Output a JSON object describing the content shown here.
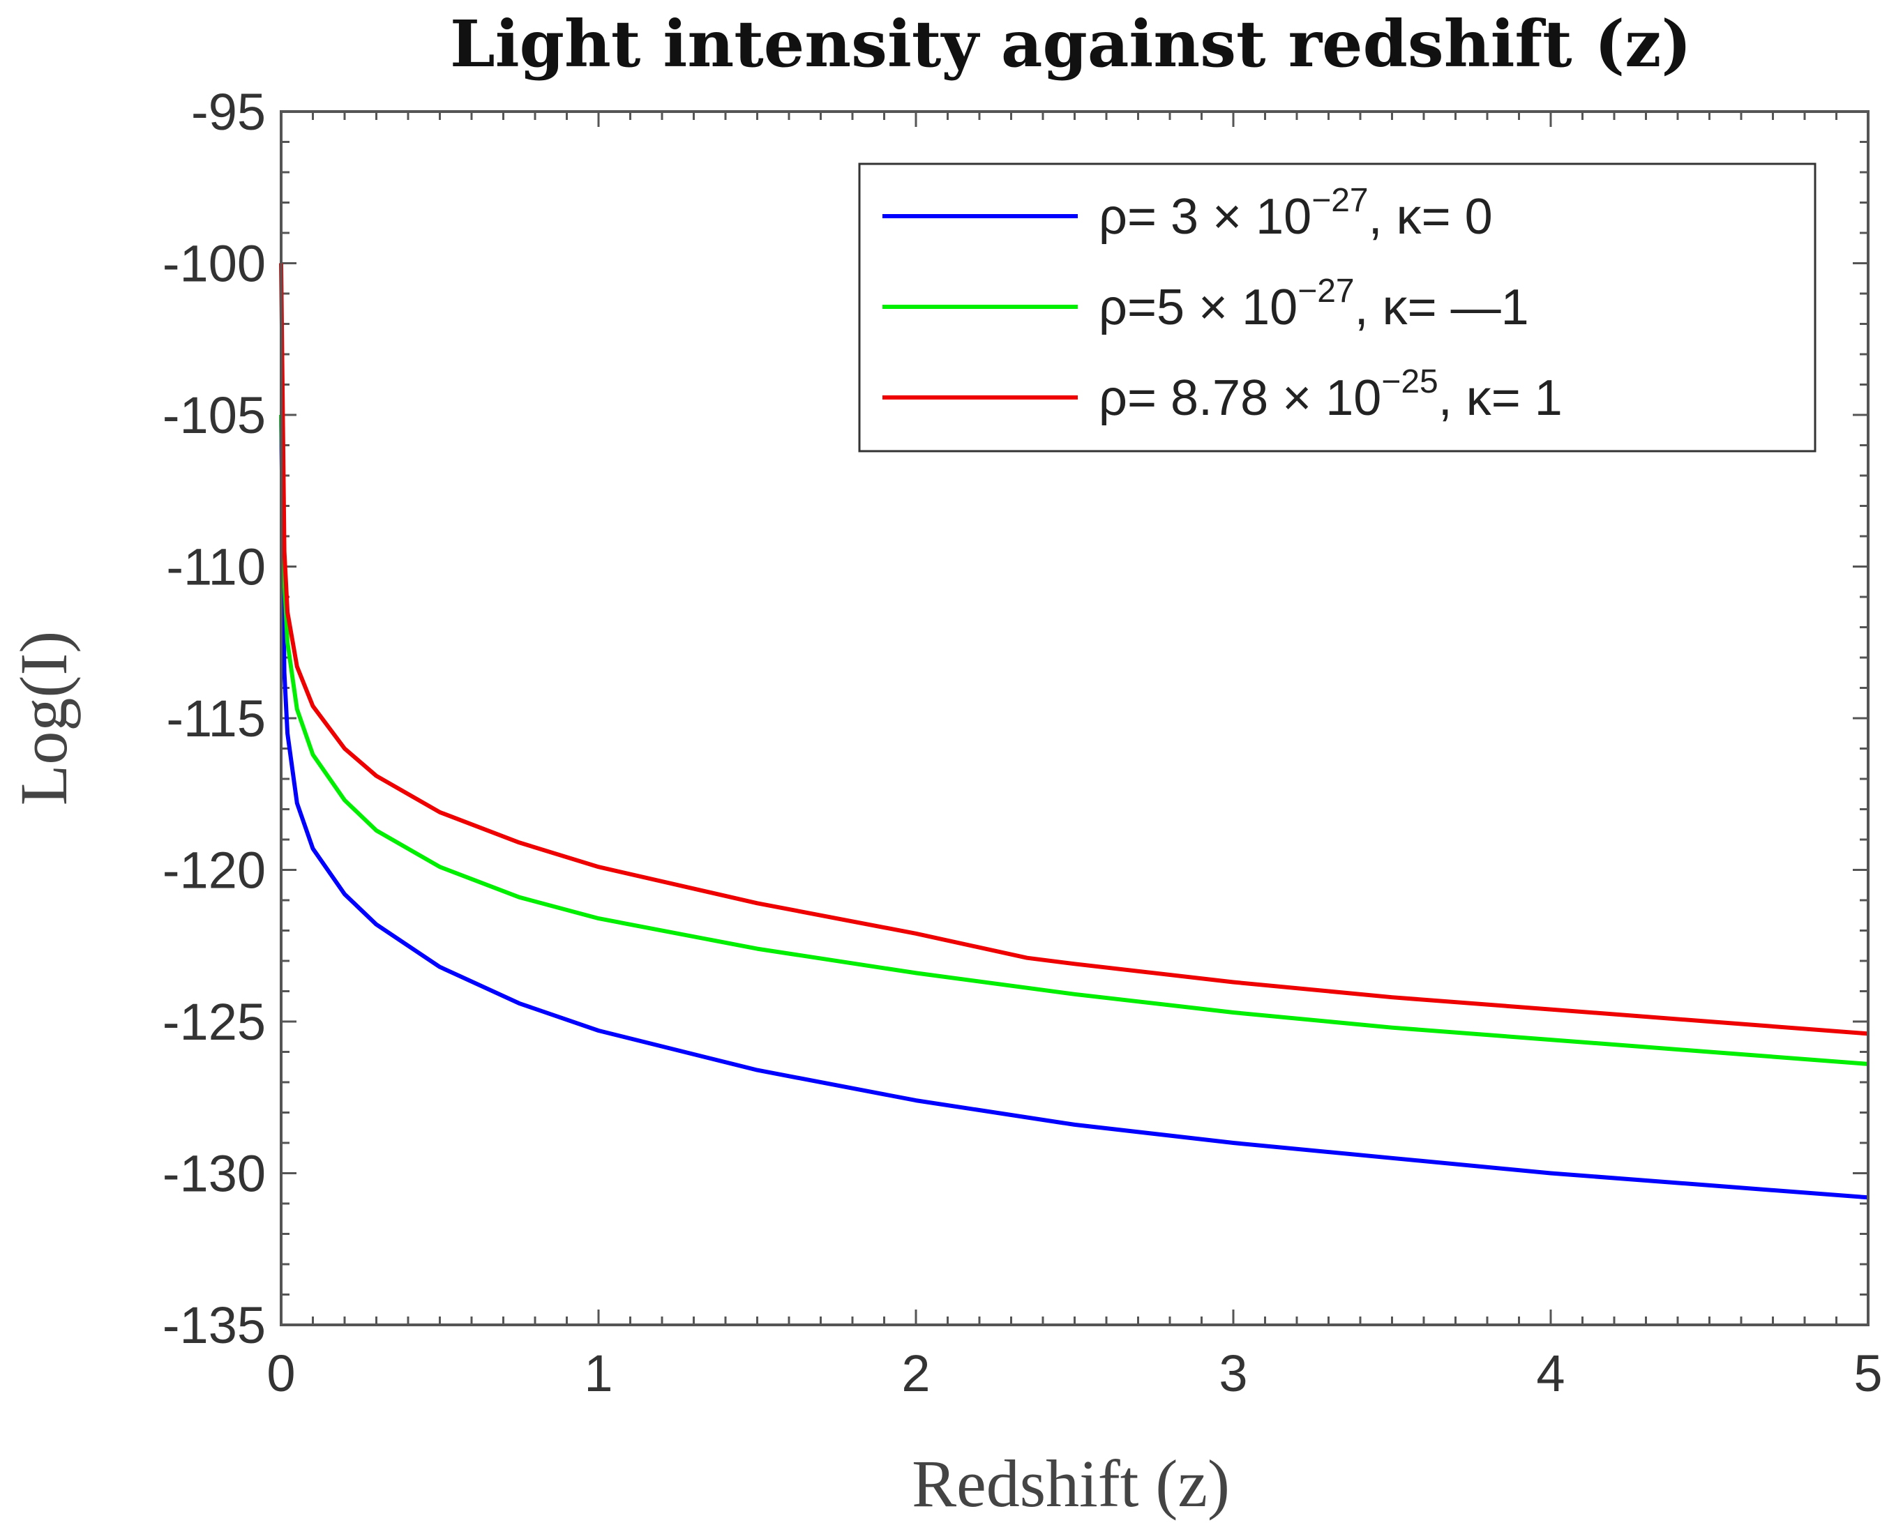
{
  "chart_data": {
    "type": "line",
    "title": "Light intensity against redshift (z)",
    "xlabel": "Redshift (z)",
    "ylabel": "Log(I)",
    "xlim": [
      0,
      5
    ],
    "ylim": [
      -135,
      -95
    ],
    "xticks": [
      0,
      1,
      2,
      3,
      4,
      5
    ],
    "yticks": [
      -95,
      -100,
      -105,
      -110,
      -115,
      -120,
      -125,
      -130,
      -135
    ],
    "grid": false,
    "legend_position": "top-right",
    "series": [
      {
        "name": "ρ= 3 × 10^−27, κ= 0",
        "legend_parts": {
          "a": "ρ= 3 × 10",
          "exp": "−27",
          "b": ", κ= 0"
        },
        "color": "#0000ff",
        "x": [
          0,
          0.01,
          0.02,
          0.05,
          0.1,
          0.2,
          0.3,
          0.5,
          0.75,
          1.0,
          1.5,
          2.0,
          2.5,
          3.0,
          3.5,
          4.0,
          4.5,
          5.0
        ],
        "y": [
          -105,
          -113.5,
          -115.5,
          -117.8,
          -119.3,
          -120.8,
          -121.8,
          -123.2,
          -124.4,
          -125.3,
          -126.6,
          -127.6,
          -128.4,
          -129.0,
          -129.5,
          -130.0,
          -130.4,
          -130.8
        ]
      },
      {
        "name": "ρ=5 × 10^−27, κ= —1",
        "legend_parts": {
          "a": "ρ=5 × 10",
          "exp": "−27",
          "b": ", κ= —1"
        },
        "color": "#00ee00",
        "x": [
          0,
          0.01,
          0.02,
          0.05,
          0.1,
          0.2,
          0.3,
          0.5,
          0.75,
          1.0,
          1.5,
          2.0,
          2.5,
          3.0,
          3.5,
          4.0,
          4.5,
          5.0
        ],
        "y": [
          -105,
          -110.5,
          -112.5,
          -114.7,
          -116.2,
          -117.7,
          -118.7,
          -119.9,
          -120.9,
          -121.6,
          -122.6,
          -123.4,
          -124.1,
          -124.7,
          -125.2,
          -125.6,
          -126.0,
          -126.4
        ]
      },
      {
        "name": "ρ= 8.78 × 10^−25, κ= 1",
        "legend_parts": {
          "a": "ρ= 8.78 × 10",
          "exp": "−25",
          "b": ", κ= 1"
        },
        "color": "#ee0000",
        "x": [
          0,
          0.01,
          0.02,
          0.05,
          0.1,
          0.2,
          0.3,
          0.5,
          0.75,
          1.0,
          1.5,
          2.0,
          2.35,
          2.5,
          3.0,
          3.5,
          4.0,
          4.5,
          5.0
        ],
        "y": [
          -100,
          -109.5,
          -111.5,
          -113.3,
          -114.6,
          -116.0,
          -116.9,
          -118.1,
          -119.1,
          -119.9,
          -121.1,
          -122.1,
          -122.9,
          -123.1,
          -123.7,
          -124.2,
          -124.6,
          -125.0,
          -125.4
        ]
      }
    ]
  }
}
